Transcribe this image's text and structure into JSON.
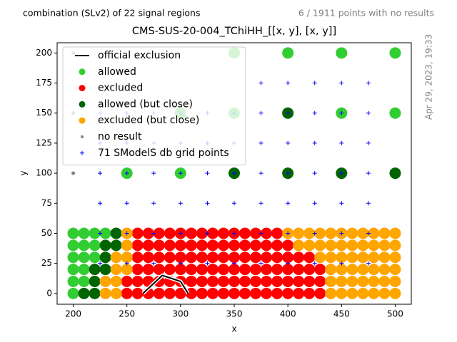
{
  "chart_data": {
    "type": "scatter",
    "title": "CMS-SUS-20-004_TChiHH_[[x, y], [x, y]]",
    "subtitle_left": "combination (SLv2) of 22 signal regions",
    "subtitle_right": "6 / 1911 points with no results",
    "side_note": "Apr 29, 2023, 19:33",
    "xlabel": "x",
    "ylabel": "y",
    "xlim": [
      185,
      515
    ],
    "ylim": [
      -9,
      208.5
    ],
    "xticks": [
      200,
      250,
      300,
      350,
      400,
      450,
      500
    ],
    "yticks": [
      0,
      25,
      50,
      75,
      100,
      125,
      150,
      175,
      200
    ],
    "legend": "upper left",
    "series": [
      {
        "name": "official exclusion",
        "color": "#000000",
        "marker": "line",
        "x": [
          265,
          283,
          300,
          307
        ],
        "y": [
          0,
          15,
          10,
          0
        ]
      },
      {
        "name": "allowed",
        "color": "#32cd32",
        "marker": "o",
        "x": [
          200,
          200,
          210,
          200,
          210,
          200,
          210,
          220,
          200,
          210,
          220,
          200,
          210,
          220,
          230,
          250,
          300,
          300,
          350,
          450,
          500,
          350,
          400,
          450,
          500
        ],
        "y": [
          0,
          10,
          10,
          20,
          20,
          30,
          30,
          30,
          40,
          40,
          40,
          50,
          50,
          50,
          50,
          100,
          100,
          150,
          150,
          150,
          150,
          200,
          200,
          200,
          200
        ]
      },
      {
        "name": "excluded",
        "color": "#ff0000",
        "marker": "o",
        "x": [
          250,
          260,
          270,
          280,
          290,
          300,
          310,
          320,
          330,
          340,
          350,
          360,
          370,
          380,
          390,
          400,
          410,
          420,
          430,
          250,
          260,
          270,
          280,
          290,
          300,
          310,
          320,
          330,
          340,
          350,
          360,
          370,
          380,
          390,
          400,
          410,
          420,
          430,
          260,
          270,
          280,
          290,
          300,
          310,
          320,
          330,
          340,
          350,
          360,
          370,
          380,
          390,
          400,
          410,
          420,
          430,
          260,
          270,
          280,
          290,
          300,
          310,
          320,
          330,
          340,
          350,
          360,
          370,
          380,
          390,
          400,
          410,
          420,
          260,
          270,
          280,
          290,
          300,
          310,
          320,
          330,
          340,
          350,
          360,
          370,
          380,
          390,
          400,
          260,
          270,
          280,
          290,
          300,
          310,
          320,
          330,
          340,
          350,
          360,
          370,
          380,
          390
        ],
        "y": [
          0,
          0,
          0,
          0,
          0,
          0,
          0,
          0,
          0,
          0,
          0,
          0,
          0,
          0,
          0,
          0,
          0,
          0,
          0,
          10,
          10,
          10,
          10,
          10,
          10,
          10,
          10,
          10,
          10,
          10,
          10,
          10,
          10,
          10,
          10,
          10,
          10,
          10,
          20,
          20,
          20,
          20,
          20,
          20,
          20,
          20,
          20,
          20,
          20,
          20,
          20,
          20,
          20,
          20,
          20,
          20,
          30,
          30,
          30,
          30,
          30,
          30,
          30,
          30,
          30,
          30,
          30,
          30,
          30,
          30,
          30,
          30,
          30,
          40,
          40,
          40,
          40,
          40,
          40,
          40,
          40,
          40,
          40,
          40,
          40,
          40,
          40,
          40,
          50,
          50,
          50,
          50,
          50,
          50,
          50,
          50,
          50,
          50,
          50,
          50,
          50,
          50
        ]
      },
      {
        "name": "allowed (but close)",
        "color": "#006400",
        "marker": "o",
        "x": [
          210,
          220,
          220,
          220,
          230,
          230,
          230,
          240,
          240,
          350,
          400,
          450,
          500,
          400
        ],
        "y": [
          0,
          0,
          10,
          20,
          20,
          30,
          40,
          40,
          50,
          100,
          100,
          100,
          100,
          150
        ]
      },
      {
        "name": "excluded (but close)",
        "color": "#ffa500",
        "marker": "o",
        "x": [
          230,
          240,
          440,
          450,
          460,
          470,
          480,
          490,
          500,
          230,
          240,
          440,
          450,
          460,
          470,
          480,
          490,
          500,
          240,
          250,
          440,
          450,
          460,
          470,
          480,
          490,
          500,
          240,
          250,
          430,
          440,
          450,
          460,
          470,
          480,
          490,
          500,
          250,
          410,
          420,
          430,
          440,
          450,
          460,
          470,
          480,
          490,
          500,
          250,
          400,
          410,
          420,
          430,
          440,
          450,
          460,
          470,
          480,
          490,
          500
        ],
        "y": [
          0,
          0,
          0,
          0,
          0,
          0,
          0,
          0,
          0,
          10,
          10,
          10,
          10,
          10,
          10,
          10,
          10,
          10,
          20,
          20,
          20,
          20,
          20,
          20,
          20,
          20,
          20,
          30,
          30,
          30,
          30,
          30,
          30,
          30,
          30,
          30,
          30,
          40,
          40,
          40,
          40,
          40,
          40,
          40,
          40,
          40,
          40,
          40,
          50,
          50,
          50,
          50,
          50,
          50,
          50,
          50,
          50,
          50,
          50,
          50
        ]
      },
      {
        "name": "no result",
        "color": "#808080",
        "marker": ".",
        "x": [
          200,
          200,
          200
        ],
        "y": [
          100,
          150,
          200
        ]
      },
      {
        "name": "71 SModelS db grid points",
        "color": "#0000ff",
        "marker": "+",
        "x": [
          225,
          250,
          275,
          300,
          325,
          350,
          375,
          400,
          425,
          450,
          475,
          225,
          250,
          275,
          300,
          325,
          350,
          375,
          400,
          425,
          450,
          475,
          225,
          250,
          275,
          300,
          325,
          350,
          375,
          400,
          425,
          450,
          475,
          225,
          250,
          275,
          300,
          325,
          350,
          375,
          400,
          425,
          450,
          475,
          225,
          250,
          275,
          300,
          325,
          350,
          375,
          400,
          425,
          450,
          475,
          225,
          250,
          275,
          300,
          325,
          350,
          375,
          400,
          425,
          450,
          475,
          375,
          400,
          425,
          450,
          475
        ],
        "y": [
          25,
          25,
          25,
          25,
          25,
          25,
          25,
          25,
          25,
          25,
          25,
          50,
          50,
          50,
          50,
          50,
          50,
          50,
          50,
          50,
          50,
          50,
          75,
          75,
          75,
          75,
          75,
          75,
          75,
          75,
          75,
          75,
          75,
          100,
          100,
          100,
          100,
          100,
          100,
          100,
          100,
          100,
          100,
          100,
          125,
          125,
          125,
          125,
          125,
          125,
          125,
          125,
          125,
          125,
          125,
          150,
          150,
          150,
          150,
          150,
          150,
          150,
          150,
          150,
          150,
          150,
          175,
          175,
          175,
          175,
          175
        ]
      }
    ]
  }
}
